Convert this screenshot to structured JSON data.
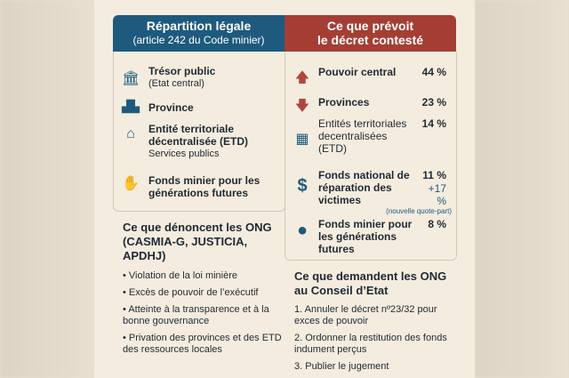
{
  "left_header": {
    "title": "Répartition légale",
    "subtitle": "(article 242 du Code minier)",
    "color": "#1e5a7e"
  },
  "right_header": {
    "title_line1": "Ce que prévoit",
    "title_line2": "le décret contesté",
    "color": "#a43e35"
  },
  "legal": [
    {
      "icon": "bank-icon",
      "label": "Trésor public",
      "sub": "(Etat central)"
    },
    {
      "icon": "building-icon",
      "label": "Province"
    },
    {
      "icon": "house-icon",
      "label": "Entité territoriale décentralisée (ETD)",
      "sub": "Services publics"
    },
    {
      "icon": "hand-person-icon",
      "label": "Fonds minier pour les générations futures"
    }
  ],
  "decree": [
    {
      "icon": "arrow-up-icon",
      "label": "Pouvoir central",
      "pct": "44 %"
    },
    {
      "icon": "arrow-down-icon",
      "label": "Provinces",
      "pct": "23 %"
    },
    {
      "icon": "office-icon",
      "label": "Entités territoriales decentralisées (ETD)",
      "pct": "14 %"
    },
    {
      "icon": "dollar-icon",
      "label": "Fonds national de réparation des victimes",
      "pct": "11 %",
      "extra": "+17 %",
      "extra_note": "(nouvelle quote-part)"
    },
    {
      "icon": "tree-icon",
      "label": "Fonds minier pour les générations futures",
      "pct": "8 %"
    }
  ],
  "denounce": {
    "title": "Ce que dénoncent les ONG (CASMIA-G, JUSTICIA, APDHJ)",
    "items": [
      "Violation de la loi minière",
      "Excès de pouvoir de l’exécutif",
      "Atteinte à la transparence et à la bonne gouvernance",
      "Privation des provinces et des ETD des ressources locales"
    ]
  },
  "demand": {
    "title": "Ce que demandent les ONG au Conseil d’Etat",
    "items": [
      "1. Annuler le décret nº23/32 pour exces de pouvoir",
      "2. Ordonner la restitution des fonds indument perçus",
      "3. Publier le jugement"
    ]
  }
}
